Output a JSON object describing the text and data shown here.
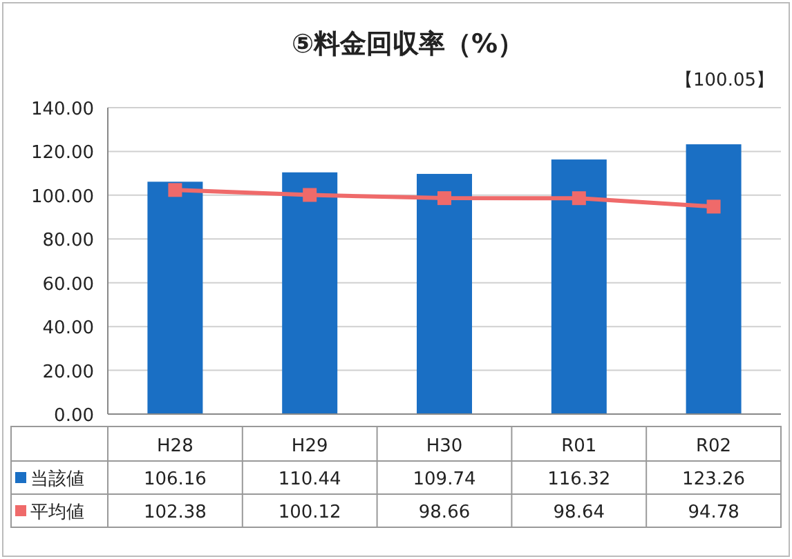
{
  "chart_data": {
    "type": "bar",
    "title": "⑤料金回収率（%）",
    "annotations": [
      "【100.05】"
    ],
    "categories": [
      "H28",
      "H29",
      "H30",
      "R01",
      "R02"
    ],
    "series": [
      {
        "name": "当該値",
        "color": "#1a6fc4",
        "values": [
          106.16,
          110.44,
          109.74,
          116.32,
          123.26
        ]
      },
      {
        "name": "平均値",
        "type": "line",
        "color": "#ef6a6a",
        "values": [
          102.38,
          100.12,
          98.66,
          98.64,
          94.78
        ]
      }
    ],
    "marker": "square",
    "ylim": [
      0,
      140
    ],
    "yticks": [
      {
        "value": 0,
        "label": "0.00"
      },
      {
        "value": 20,
        "label": "20.00"
      },
      {
        "value": 40,
        "label": "40.00"
      },
      {
        "value": 60,
        "label": "60.00"
      },
      {
        "value": 80,
        "label": "80.00"
      },
      {
        "value": 100,
        "label": "100.00"
      },
      {
        "value": 120,
        "label": "120.00"
      },
      {
        "value": 140,
        "label": "140.00"
      }
    ],
    "grid": "y",
    "legend": "bottom left",
    "data_labels": true
  }
}
